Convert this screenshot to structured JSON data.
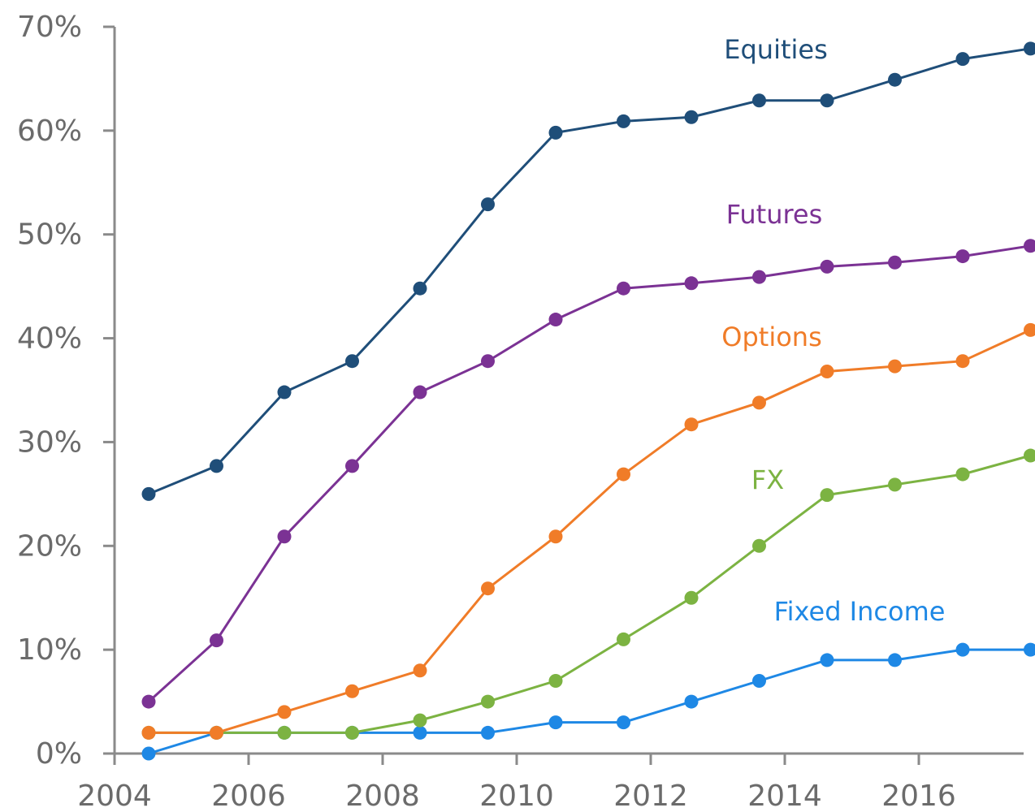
{
  "chart_data": {
    "type": "line",
    "xlim": [
      2004,
      2016
    ],
    "ylim": [
      0,
      70
    ],
    "x": [
      2004,
      2005,
      2006,
      2007,
      2008,
      2009,
      2010,
      2011,
      2012,
      2013,
      2014,
      2015,
      2016,
      2017
    ],
    "x_ticks": [
      2004,
      2006,
      2008,
      2010,
      2012,
      2014,
      2016
    ],
    "x_tick_labels": [
      "2004",
      "2006",
      "2008",
      "2010",
      "2012",
      "2014",
      "2016"
    ],
    "y_ticks": [
      0,
      10,
      20,
      30,
      40,
      50,
      60,
      70
    ],
    "y_tick_labels": [
      "0%",
      "10%",
      "20%",
      "30%",
      "40%",
      "50%",
      "60%",
      "70%"
    ],
    "grid": false,
    "legend": "inline labels next to each line",
    "series": [
      {
        "name": "Equities",
        "color": "#1f4e79",
        "values": [
          25,
          27.7,
          34.8,
          37.8,
          44.8,
          52.9,
          59.8,
          60.9,
          61.3,
          62.9,
          62.9,
          64.9,
          66.9,
          67.9
        ]
      },
      {
        "name": "Futures",
        "color": "#7b3294",
        "values": [
          5,
          10.9,
          20.9,
          27.7,
          34.8,
          37.8,
          41.8,
          44.8,
          45.3,
          45.9,
          46.9,
          47.3,
          47.9,
          48.9
        ]
      },
      {
        "name": "Options",
        "color": "#f07c28",
        "values": [
          2,
          2,
          4,
          6,
          8,
          15.9,
          20.9,
          26.9,
          31.7,
          33.8,
          36.8,
          37.3,
          37.8,
          40.8
        ]
      },
      {
        "name": "FX",
        "color": "#7cb342",
        "values": [
          2,
          2,
          2,
          2,
          3.2,
          5,
          7,
          11,
          15,
          20,
          24.9,
          25.9,
          26.9,
          28.7
        ]
      },
      {
        "name": "Fixed Income",
        "color": "#1e88e5",
        "values": [
          0,
          2,
          2,
          2,
          2,
          2,
          3,
          3,
          5,
          7,
          9,
          9,
          10,
          10
        ]
      }
    ]
  }
}
